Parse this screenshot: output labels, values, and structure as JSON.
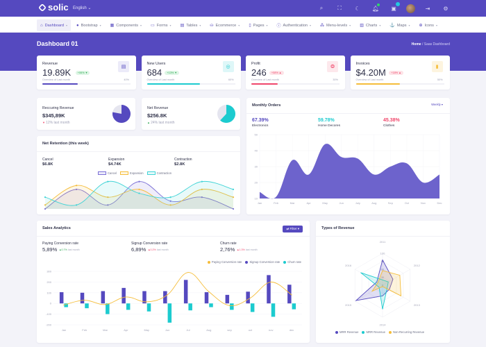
{
  "app": {
    "brand": "solic",
    "language": "English",
    "top_icons": [
      "search-icon",
      "fullscreen-icon",
      "moon-icon",
      "bell-icon",
      "calendar-icon",
      "avatar",
      "rtl-icon",
      "gear-icon"
    ]
  },
  "nav": {
    "items": [
      {
        "label": "Dashboard",
        "icon": "home-icon",
        "active": true
      },
      {
        "label": "Bootstrap",
        "icon": "bootstrap-icon"
      },
      {
        "label": "Components",
        "icon": "grid-icon"
      },
      {
        "label": "Forms",
        "icon": "folder-icon"
      },
      {
        "label": "Tables",
        "icon": "table-icon"
      },
      {
        "label": "Ecommerce",
        "icon": "bag-icon"
      },
      {
        "label": "Pages",
        "icon": "file-icon"
      },
      {
        "label": "Authentication",
        "icon": "lock-icon"
      },
      {
        "label": "Menu-levels",
        "icon": "menu-icon"
      },
      {
        "label": "Charts",
        "icon": "chart-icon"
      },
      {
        "label": "Maps",
        "icon": "map-icon"
      },
      {
        "label": "Icons",
        "icon": "globe-icon"
      }
    ]
  },
  "header": {
    "title": "Dashboard 01",
    "breadcrumb_home": "Home",
    "breadcrumb_sep": "/",
    "breadcrumb_current": "Saas Dashboard"
  },
  "kpis": [
    {
      "label": "Revenue",
      "value": "19.89K",
      "change": "+06% ▼",
      "trend": "up",
      "subtitle": "Overview of Last month",
      "percent_label": "40%",
      "progress": 40,
      "color": "#5549bf",
      "icon_bg": "#ecebf9"
    },
    {
      "label": "New Users",
      "value": "684",
      "change": "+13% ▼",
      "trend": "up",
      "subtitle": "Overview of Last month",
      "percent_label": "60%",
      "progress": 60,
      "color": "#1ccbcf",
      "icon_bg": "#def7f8"
    },
    {
      "label": "Profit",
      "value": "246",
      "change": "+08% ▲",
      "trend": "down",
      "subtitle": "Overview of Last month",
      "percent_label": "30%",
      "progress": 30,
      "color": "#f0466b",
      "icon_bg": "#fde8ec"
    },
    {
      "label": "Invoices",
      "value": "$4.20M",
      "change": "+18% ▲",
      "trend": "down",
      "subtitle": "Overview of Last month",
      "percent_label": "50%",
      "progress": 50,
      "color": "#f5bd3a",
      "icon_bg": "#fdf4df"
    }
  ],
  "minis": [
    {
      "label": "Reccuring Revenue",
      "value": "$345,89K",
      "change": "12% last month",
      "trend": "down",
      "share": 0.78,
      "color": "#5549bf"
    },
    {
      "label": "Net Revenue",
      "value": "$256.8K",
      "change": "24% last month",
      "trend": "up",
      "share": 0.62,
      "color": "#1ccbcf"
    }
  ],
  "net_retention": {
    "title": "Net Retention (this week)",
    "stats": [
      {
        "label": "Cancel",
        "value": "$6.8K"
      },
      {
        "label": "Expansion",
        "value": "$4.74K"
      },
      {
        "label": "Contraction",
        "value": "$2.8K"
      }
    ],
    "chart_data": {
      "type": "area",
      "series": [
        {
          "name": "Cancel",
          "color": "#7b6fd6",
          "values": [
            0,
            5,
            1,
            7,
            2,
            3,
            0
          ]
        },
        {
          "name": "Expansion",
          "color": "#f5bd3a",
          "values": [
            1,
            6,
            3,
            5,
            1,
            5,
            3
          ]
        },
        {
          "name": "Contraction",
          "color": "#3fd3d6",
          "values": [
            3,
            1,
            7,
            4,
            3,
            7,
            5
          ]
        }
      ],
      "ylim": [
        0,
        8
      ]
    }
  },
  "monthly_orders": {
    "title": "Monthly Orders",
    "dropdown": "Weekly ▾",
    "stats": [
      {
        "value": "67.39%",
        "label": "Electronics",
        "color": "#5549bf"
      },
      {
        "value": "59.78%",
        "label": "Home Decores",
        "color": "#1ccbcf"
      },
      {
        "value": "45.38%",
        "label": "Clothes",
        "color": "#f0466b"
      }
    ],
    "chart_data": {
      "type": "area",
      "categories": [
        "Jan",
        "Feb",
        "Mar",
        "Apr",
        "May",
        "Jun",
        "July",
        "Aug",
        "Sep",
        "Oct",
        "Nov",
        "Dec"
      ],
      "values": [
        14,
        11,
        34,
        25,
        44,
        36,
        35,
        25,
        30,
        32,
        20,
        25
      ],
      "yticks": [
        "10",
        "20",
        "30",
        "40",
        "50"
      ],
      "ylim": [
        10,
        50
      ],
      "color": "#6d63cc"
    }
  },
  "sales_analytics": {
    "title": "Sales Analytics",
    "filter": "⇄ Filter ▾",
    "stats": [
      {
        "label": "Paying Conversion rate",
        "value": "5,89%",
        "change": "▲0.7%",
        "trend": "up",
        "suffix": "last month"
      },
      {
        "label": "Signup Conversion rate",
        "value": "6,89%",
        "change": "▲0.2%",
        "trend": "down",
        "suffix": "last month"
      },
      {
        "label": "Churn rate",
        "value": "2,76%",
        "change": "▲1.3%",
        "trend": "down",
        "suffix": "last month"
      }
    ],
    "chart_data": {
      "type": "bar",
      "categories": [
        "Jan",
        "Feb",
        "Mar",
        "Apr",
        "May",
        "Jun",
        "Jul",
        "Aug",
        "sep",
        "oct",
        "nov",
        "dec"
      ],
      "series": [
        {
          "name": "Paying Conversion rate",
          "type": "line",
          "color": "#f5bd3a",
          "values": [
            -15,
            30,
            -10,
            60,
            15,
            80,
            290,
            110,
            -20,
            50,
            200,
            80
          ]
        },
        {
          "name": "Signup Conversion rate",
          "type": "bar",
          "color": "#5549bf",
          "values": [
            105,
            100,
            115,
            145,
            115,
            115,
            220,
            105,
            80,
            110,
            265,
            175
          ]
        },
        {
          "name": "Churn rate",
          "type": "bar",
          "color": "#1ccbcf",
          "values": [
            -35,
            -45,
            -100,
            -60,
            -75,
            -180,
            -65,
            -35,
            -60,
            -80,
            -125,
            -55
          ]
        }
      ],
      "yticks": [
        "300",
        "200",
        "100",
        "0",
        "-100",
        "-200"
      ],
      "ylim": [
        -200,
        300
      ]
    }
  },
  "types_of_revenue": {
    "title": "Types of Revenue",
    "chart_data": {
      "type": "radar",
      "axes": [
        "2011",
        "2012",
        "2013",
        "2014",
        "2015",
        "2016"
      ],
      "rings": [
        "120",
        "90",
        "60",
        "30",
        "0"
      ],
      "rmax": 120,
      "series": [
        {
          "name": "MRR Revenue",
          "color": "#5549bf",
          "values": [
            95,
            45,
            30,
            40,
            115,
            25
          ]
        },
        {
          "name": "MRR Revenue",
          "color": "#1ccbcf",
          "values": [
            20,
            25,
            20,
            90,
            15,
            95
          ]
        },
        {
          "name": "Non-Recurring Revenue",
          "color": "#f5bd3a",
          "values": [
            55,
            75,
            80,
            5,
            45,
            20
          ]
        }
      ]
    }
  }
}
